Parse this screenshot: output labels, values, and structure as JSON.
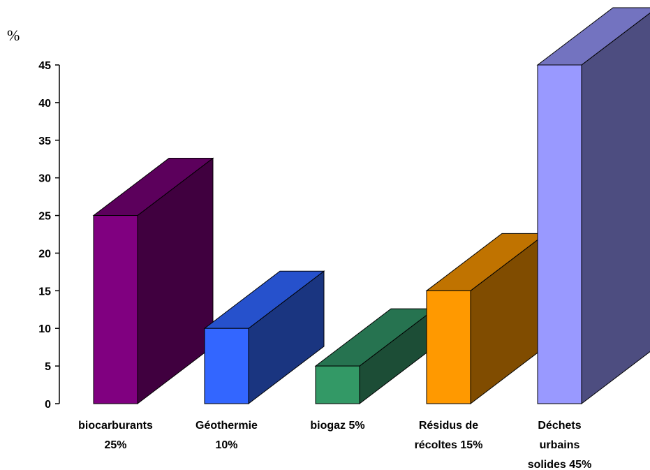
{
  "chart_data": {
    "type": "bar",
    "style": "3d",
    "title": "",
    "xlabel": "",
    "ylabel": "%",
    "ylim": [
      0,
      45
    ],
    "yticks": [
      0,
      5,
      10,
      15,
      20,
      25,
      30,
      35,
      40,
      45
    ],
    "grid": false,
    "legend": "none",
    "categories": [
      [
        "biocarburants",
        "25%"
      ],
      [
        "Géothermie",
        "10%"
      ],
      [
        "biogaz 5%"
      ],
      [
        "Résidus de",
        "récoltes 15%"
      ],
      [
        "Déchets",
        "urbains",
        "solides 45%"
      ]
    ],
    "values": [
      25,
      10,
      5,
      15,
      45
    ],
    "colors": [
      {
        "front": "#800080",
        "top": "#5c005c",
        "side": "#40003f"
      },
      {
        "front": "#3366ff",
        "top": "#2651cc",
        "side": "#1a3580"
      },
      {
        "front": "#339966",
        "top": "#267350",
        "side": "#1c4d36"
      },
      {
        "front": "#ff9900",
        "top": "#c07300",
        "side": "#804c00"
      },
      {
        "front": "#9999ff",
        "top": "#7373c0",
        "side": "#4d4d80"
      }
    ]
  }
}
